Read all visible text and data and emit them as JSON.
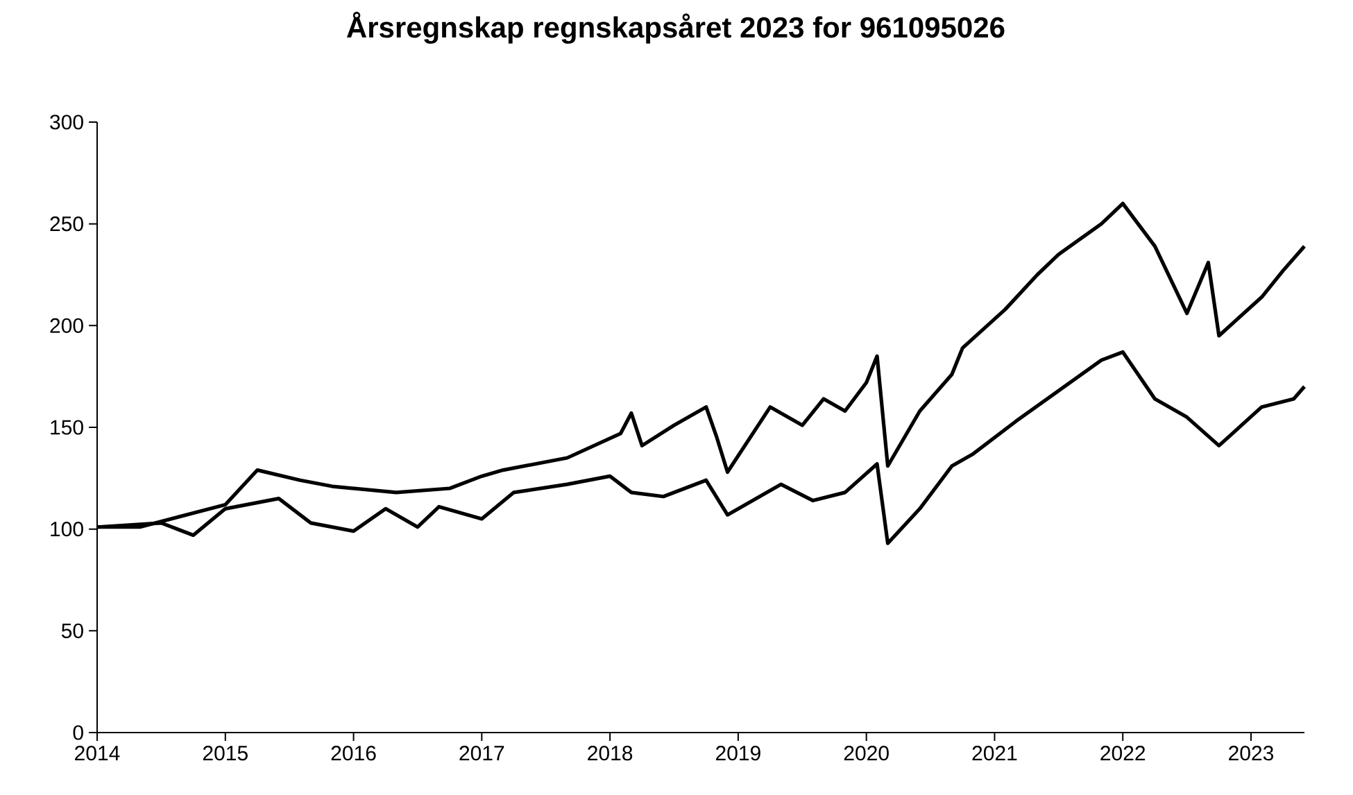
{
  "chart_data": {
    "type": "line",
    "title": "Årsregnskap regnskapsåret 2023 for 961095026",
    "xlim": [
      "2014",
      "2023-06"
    ],
    "xticks": [
      "2014",
      "2015",
      "2016",
      "2017",
      "2018",
      "2019",
      "2020",
      "2021",
      "2022",
      "2023"
    ],
    "ylim": [
      0,
      300
    ],
    "yticks": [
      0,
      50,
      100,
      150,
      200,
      250,
      300
    ],
    "grid": false,
    "marker": "none",
    "line_style": "solid",
    "series": [
      {
        "color": "#000000",
        "x": [
          "2014-01",
          "2014-05",
          "2015-01",
          "2015-04",
          "2015-08",
          "2015-11",
          "2016-05",
          "2016-10",
          "2017-01",
          "2017-03",
          "2017-09",
          "2018-02",
          "2018-03",
          "2018-04",
          "2018-07",
          "2018-10",
          "2018-11",
          "2018-12",
          "2019-04",
          "2019-07",
          "2019-09",
          "2019-11",
          "2020-01",
          "2020-02",
          "2020-03",
          "2020-06",
          "2020-09",
          "2020-10",
          "2021-02",
          "2021-05",
          "2021-07",
          "2021-11",
          "2022-01",
          "2022-04",
          "2022-07",
          "2022-09",
          "2022-10",
          "2023-02",
          "2023-04",
          "2023-06"
        ],
        "values": [
          101,
          101,
          112,
          129,
          124,
          121,
          118,
          120,
          126,
          129,
          135,
          147,
          157,
          141,
          151,
          160,
          145,
          128,
          160,
          151,
          164,
          158,
          172,
          185,
          131,
          158,
          176,
          189,
          208,
          225,
          235,
          250,
          260,
          239,
          206,
          231,
          195,
          214,
          227,
          239
        ]
      },
      {
        "color": "#000000",
        "x": [
          "2014-01",
          "2014-07",
          "2014-10",
          "2015-01",
          "2015-06",
          "2015-09",
          "2016-01",
          "2016-04",
          "2016-07",
          "2016-09",
          "2017-01",
          "2017-04",
          "2017-09",
          "2018-01",
          "2018-03",
          "2018-06",
          "2018-10",
          "2018-12",
          "2019-05",
          "2019-08",
          "2019-11",
          "2020-02",
          "2020-03",
          "2020-06",
          "2020-09",
          "2020-11",
          "2021-03",
          "2021-07",
          "2021-11",
          "2022-01",
          "2022-04",
          "2022-07",
          "2022-10",
          "2023-02",
          "2023-05",
          "2023-06"
        ],
        "values": [
          101,
          103,
          97,
          110,
          115,
          103,
          99,
          110,
          101,
          111,
          105,
          118,
          122,
          126,
          118,
          116,
          124,
          107,
          122,
          114,
          118,
          132,
          93,
          110,
          131,
          137,
          153,
          168,
          183,
          187,
          164,
          155,
          141,
          160,
          164,
          170
        ]
      }
    ]
  }
}
